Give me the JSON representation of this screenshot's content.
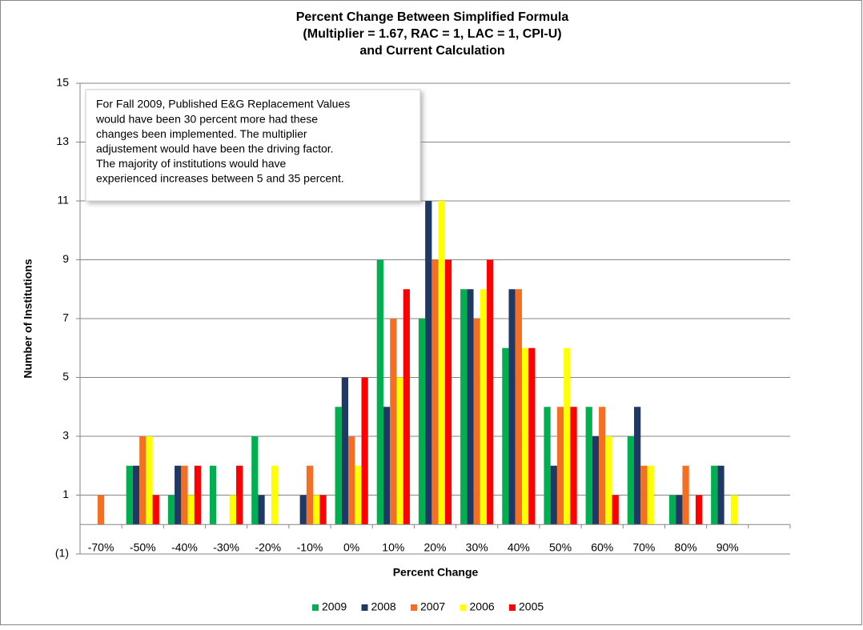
{
  "chart_data": {
    "type": "bar",
    "title": [
      "Percent Change Between Simplified Formula",
      "(Multiplier = 1.67, RAC = 1, LAC = 1, CPI-U)",
      "and Current Calculation"
    ],
    "y_label": "Number of Institutions",
    "x_label": "Percent Change",
    "annotation": [
      "For Fall 2009, Published E&G Replacement Values",
      "would have been 30 percent more had these",
      "changes been implemented. The multiplier",
      "adjustement would have been the driving factor.",
      "The majority of institutions would have",
      "experienced increases between 5 and 35 percent."
    ],
    "categories": [
      "-70%",
      "-50%",
      "-40%",
      "-30%",
      "-20%",
      "-10%",
      "0%",
      "10%",
      "20%",
      "30%",
      "40%",
      "50%",
      "60%",
      "70%",
      "80%",
      "90%",
      null
    ],
    "series": [
      {
        "name": "2009",
        "color": "#00b050",
        "values": [
          0,
          2,
          1,
          2,
          3,
          0,
          4,
          9,
          7,
          8,
          6,
          4,
          4,
          3,
          1,
          2,
          0
        ]
      },
      {
        "name": "2008",
        "color": "#1f3864",
        "values": [
          0,
          2,
          2,
          0,
          1,
          1,
          5,
          4,
          11,
          8,
          8,
          2,
          3,
          4,
          1,
          2,
          0
        ]
      },
      {
        "name": "2007",
        "color": "#f46f24",
        "values": [
          1,
          3,
          2,
          0,
          0,
          2,
          3,
          7,
          9,
          7,
          8,
          4,
          4,
          2,
          2,
          0,
          0
        ]
      },
      {
        "name": "2006",
        "color": "#ffff00",
        "values": [
          0,
          3,
          1,
          1,
          2,
          1,
          2,
          5,
          11,
          8,
          6,
          6,
          3,
          2,
          0,
          1,
          0
        ]
      },
      {
        "name": "2005",
        "color": "#ff0000",
        "values": [
          0,
          1,
          2,
          2,
          0,
          1,
          5,
          8,
          9,
          9,
          6,
          4,
          1,
          0,
          1,
          0,
          0
        ]
      }
    ],
    "ylim": [
      -1,
      15
    ],
    "yticks": [
      {
        "value": -1,
        "label": "(1)"
      },
      1,
      3,
      5,
      7,
      9,
      11,
      13,
      15
    ],
    "grid": true,
    "legend": "bottom"
  }
}
